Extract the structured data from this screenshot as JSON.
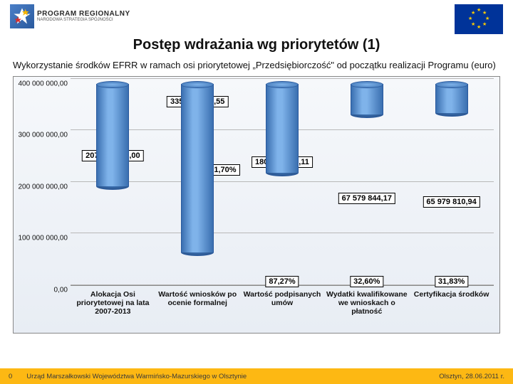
{
  "header": {
    "program_label_1": "PROGRAM REGIONALNY",
    "program_label_2": "NARODOWA STRATEGIA SPÓJNOŚCI"
  },
  "title": "Postęp wdrażania wg priorytetów (1)",
  "subtitle": "Wykorzystanie środków EFRR w ramach osi priorytetowej „Przedsiębiorczość\" od początku realizacji Programu (euro)",
  "chart": {
    "type": "bar",
    "ymax": 400000000,
    "ytick_step": 100000000,
    "yticks": [
      "0,00",
      "100 000 000,00",
      "200 000 000,00",
      "300 000 000,00",
      "400 000 000,00"
    ],
    "bar_color_light": "#7fb3ea",
    "bar_color_dark": "#3a6fb0",
    "bar_border": "#2a5a9e",
    "background_top": "#f6f8fb",
    "background_bottom": "#e8edf4",
    "grid_color": "#b8b8b8",
    "bars": [
      {
        "value": 207308408.0,
        "value_label": "207 308 408,00",
        "pct": null,
        "xlabel": "Alokacja Osi priorytetowej na lata 2007-2013"
      },
      {
        "value": 335226263.55,
        "value_label": "335 226 263,55",
        "pct": "161,70%",
        "xlabel": "Wartość wniosków po ocenie formalnej"
      },
      {
        "value": 180925450.11,
        "value_label": "180 925 450,11",
        "pct": "87,27%",
        "xlabel": "Wartość podpisanych umów"
      },
      {
        "value": 67579844.17,
        "value_label": "67 579 844,17",
        "pct": "32,60%",
        "xlabel": "Wydatki kwalifikowane we wnioskach o płatność"
      },
      {
        "value": 65979810.94,
        "value_label": "65 979 810,94",
        "pct": "31,83%",
        "xlabel": "Certyfikacja środków"
      }
    ]
  },
  "footer": {
    "page": "0",
    "org": "Urząd Marszałkowski Województwa Warmińsko-Mazurskiego w Olsztynie",
    "location": "Olsztyn, 28.06.2011 r."
  }
}
